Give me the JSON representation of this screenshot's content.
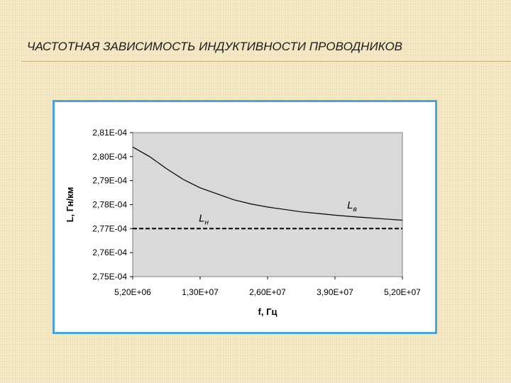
{
  "slide": {
    "title": "ЧАСТОТНАЯ ЗАВИСИМОСТЬ ИНДУКТИВНОСТИ ПРОВОДНИКОВ"
  },
  "colors": {
    "frame_border": "#4aa3df",
    "plot_bg": "#d9d9d9",
    "curve": "#000000"
  },
  "chart_data": {
    "type": "line",
    "title": "",
    "xlabel": "f, Гц",
    "ylabel": "L, Гн/км",
    "x_tick_labels": [
      "5,20E+06",
      "1,30E+07",
      "2,60E+07",
      "3,90E+07",
      "5,20E+07"
    ],
    "y_tick_labels": [
      "2,81E-04",
      "2,80E-04",
      "2,79E-04",
      "2,78E-04",
      "2,77E-04",
      "2,76E-04",
      "2,75E-04"
    ],
    "y_ticks": [
      0.000281,
      0.00028,
      0.000279,
      0.000278,
      0.000277,
      0.000276,
      0.000275
    ],
    "ylim": [
      0.000275,
      0.000281
    ],
    "grid": false,
    "series": [
      {
        "name": "Lв",
        "style": "solid",
        "x_index": [
          0,
          0.25,
          0.5,
          0.75,
          1,
          1.25,
          1.5,
          1.75,
          2,
          2.25,
          2.5,
          2.75,
          3,
          3.25,
          3.5,
          3.75,
          4
        ],
        "values": [
          0.0002804,
          0.00028,
          0.0002795,
          0.00027905,
          0.0002787,
          0.00027845,
          0.0002782,
          0.00027803,
          0.0002779,
          0.0002778,
          0.0002777,
          0.00027763,
          0.00027756,
          0.0002775,
          0.00027745,
          0.0002774,
          0.00027735
        ]
      },
      {
        "name": "Lн",
        "style": "dashed",
        "x_index": [
          0,
          4
        ],
        "values": [
          0.000277,
          0.000277
        ]
      }
    ],
    "annotations": [
      {
        "text": "Lв",
        "series": "Lв"
      },
      {
        "text": "Lн",
        "series": "Lн"
      }
    ]
  }
}
